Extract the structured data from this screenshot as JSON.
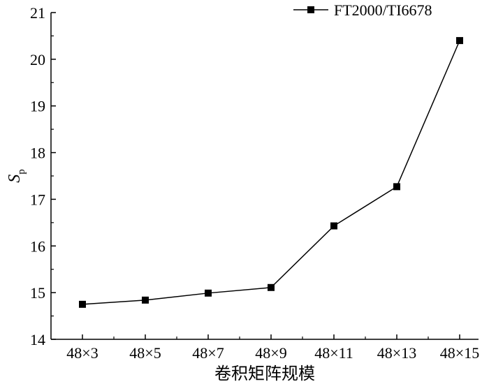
{
  "chart_data": {
    "type": "line",
    "title": "",
    "xlabel": "卷积矩阵规模",
    "ylabel": "S",
    "ylabel_subscript": "p",
    "categories": [
      "48×3",
      "48×5",
      "48×7",
      "48×9",
      "48×11",
      "48×13",
      "48×15"
    ],
    "ylim": [
      14,
      21
    ],
    "yticks": [
      "14",
      "15",
      "16",
      "17",
      "18",
      "19",
      "20",
      "21"
    ],
    "grid": false,
    "legend_position": "top-right",
    "series": [
      {
        "name": "FT2000/TI6678",
        "marker": "square",
        "color": "#000000",
        "values": [
          14.75,
          14.84,
          14.99,
          15.11,
          16.43,
          17.27,
          20.4
        ]
      }
    ]
  }
}
